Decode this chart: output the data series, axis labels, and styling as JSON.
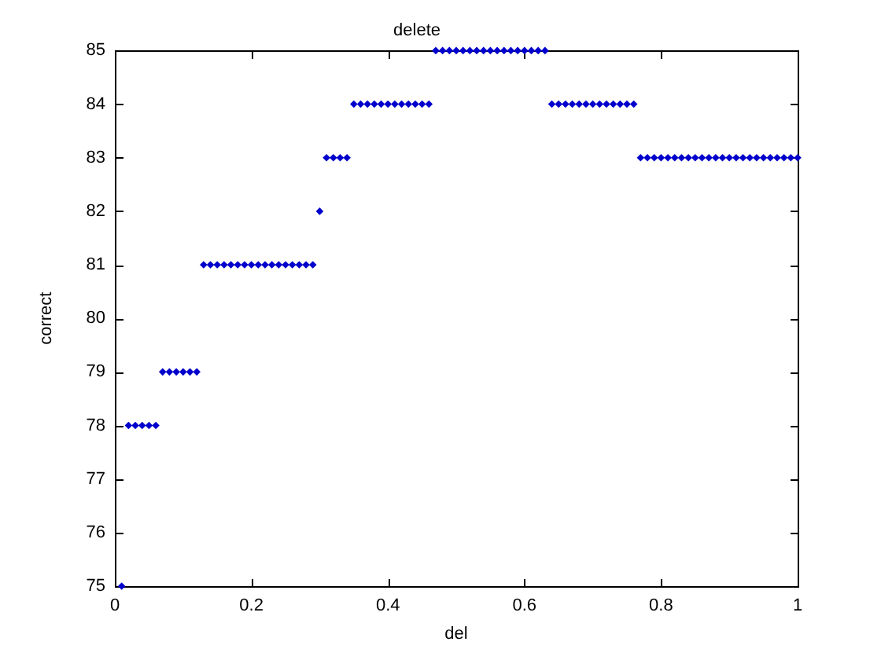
{
  "chart_data": {
    "type": "scatter",
    "title": "delete",
    "xlabel": "del",
    "ylabel": "correct",
    "x": [
      0.01,
      0.02,
      0.03,
      0.04,
      0.05,
      0.06,
      0.07,
      0.08,
      0.09,
      0.1,
      0.11,
      0.12,
      0.13,
      0.14,
      0.15,
      0.16,
      0.17,
      0.18,
      0.19,
      0.2,
      0.21,
      0.22,
      0.23,
      0.24,
      0.25,
      0.26,
      0.27,
      0.28,
      0.29,
      0.3,
      0.31,
      0.32,
      0.33,
      0.34,
      0.35,
      0.36,
      0.37,
      0.38,
      0.39,
      0.4,
      0.41,
      0.42,
      0.43,
      0.44,
      0.45,
      0.46,
      0.47,
      0.48,
      0.49,
      0.5,
      0.51,
      0.52,
      0.53,
      0.54,
      0.55,
      0.56,
      0.57,
      0.58,
      0.59,
      0.6,
      0.61,
      0.62,
      0.63,
      0.64,
      0.65,
      0.66,
      0.67,
      0.68,
      0.69,
      0.7,
      0.71,
      0.72,
      0.73,
      0.74,
      0.75,
      0.76,
      0.77,
      0.78,
      0.79,
      0.8,
      0.81,
      0.82,
      0.83,
      0.84,
      0.85,
      0.86,
      0.87,
      0.88,
      0.89,
      0.9,
      0.91,
      0.92,
      0.93,
      0.94,
      0.95,
      0.96,
      0.97,
      0.98,
      0.99,
      1.0
    ],
    "values": [
      75,
      78,
      78,
      78,
      78,
      78,
      79,
      79,
      79,
      79,
      79,
      79,
      81,
      81,
      81,
      81,
      81,
      81,
      81,
      81,
      81,
      81,
      81,
      81,
      81,
      81,
      81,
      81,
      81,
      82,
      83,
      83,
      83,
      83,
      84,
      84,
      84,
      84,
      84,
      84,
      84,
      84,
      84,
      84,
      84,
      84,
      85,
      85,
      85,
      85,
      85,
      85,
      85,
      85,
      85,
      85,
      85,
      85,
      85,
      85,
      85,
      85,
      85,
      84,
      84,
      84,
      84,
      84,
      84,
      84,
      84,
      84,
      84,
      84,
      84,
      84,
      83,
      83,
      83,
      83,
      83,
      83,
      83,
      83,
      83,
      83,
      83,
      83,
      83,
      83,
      83,
      83,
      83,
      83,
      83,
      83,
      83,
      83,
      83,
      83
    ],
    "color": "#0000cc",
    "marker": "diamond",
    "xlim": [
      0,
      1
    ],
    "xticks": [
      0,
      0.2,
      0.4,
      0.6,
      0.8,
      1
    ],
    "ylim": [
      75,
      85
    ],
    "yticks": [
      75,
      76,
      77,
      78,
      79,
      80,
      81,
      82,
      83,
      84,
      85
    ]
  }
}
